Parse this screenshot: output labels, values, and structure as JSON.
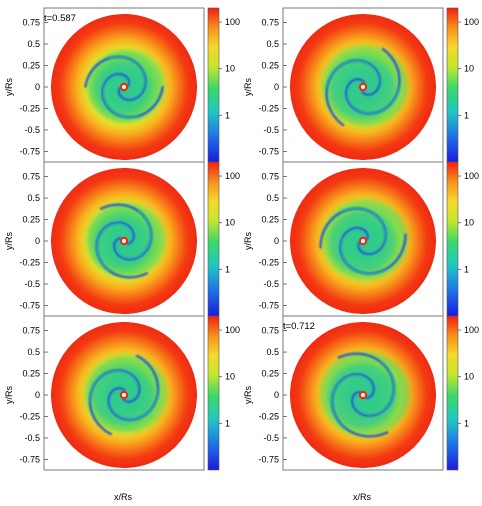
{
  "chart_data": [
    {
      "type": "heatmap",
      "row": 1,
      "col": 1,
      "annotation": "t=0.587",
      "ylabel": "y/Rs",
      "xlabel": "",
      "ylim": [
        -0.85,
        0.85
      ],
      "xlim": [
        -0.85,
        0.85
      ],
      "yticks": [
        "0.75",
        "0.5",
        "0.25",
        "0",
        "-0.25",
        "-0.5",
        "-0.75"
      ],
      "colorbar": {
        "scale": "log",
        "range": [
          0.1,
          200
        ],
        "ticks": [
          "100",
          "10",
          "1"
        ]
      },
      "spiral_arms": 2,
      "spiral_phase": 0.3,
      "green_radius": 0.45
    },
    {
      "type": "heatmap",
      "row": 1,
      "col": 2,
      "annotation": "",
      "ylabel": "y/Rs",
      "xlabel": "",
      "ylim": [
        -0.85,
        0.85
      ],
      "xlim": [
        -0.85,
        0.85
      ],
      "yticks": [
        "0.75",
        "0.5",
        "0.25",
        "0",
        "-0.25",
        "-0.5",
        "-0.75"
      ],
      "colorbar": {
        "scale": "log",
        "range": [
          0.1,
          200
        ],
        "ticks": [
          "100",
          "10",
          "1"
        ]
      },
      "spiral_arms": 2,
      "spiral_phase": 1.4,
      "green_radius": 0.5
    },
    {
      "type": "heatmap",
      "row": 2,
      "col": 1,
      "annotation": "",
      "ylabel": "y/Rs",
      "xlabel": "",
      "ylim": [
        -0.85,
        0.85
      ],
      "xlim": [
        -0.85,
        0.85
      ],
      "yticks": [
        "0.75",
        "0.5",
        "0.25",
        "0",
        "-0.25",
        "-0.5",
        "-0.75"
      ],
      "colorbar": {
        "scale": "log",
        "range": [
          0.1,
          200
        ],
        "ticks": [
          "100",
          "10",
          "1"
        ]
      },
      "spiral_arms": 2,
      "spiral_phase": 2.5,
      "green_radius": 0.46
    },
    {
      "type": "heatmap",
      "row": 2,
      "col": 2,
      "annotation": "",
      "ylabel": "y/Rs",
      "xlabel": "",
      "ylim": [
        -0.85,
        0.85
      ],
      "xlim": [
        -0.85,
        0.85
      ],
      "yticks": [
        "0.75",
        "0.5",
        "0.25",
        "0",
        "-0.25",
        "-0.5",
        "-0.75"
      ],
      "colorbar": {
        "scale": "log",
        "range": [
          0.1,
          200
        ],
        "ticks": [
          "100",
          "10",
          "1"
        ]
      },
      "spiral_arms": 2,
      "spiral_phase": 3.6,
      "green_radius": 0.5
    },
    {
      "type": "heatmap",
      "row": 3,
      "col": 1,
      "annotation": "",
      "ylabel": "y/Rs",
      "xlabel": "x/Rs",
      "ylim": [
        -0.85,
        0.85
      ],
      "xlim": [
        -0.85,
        0.85
      ],
      "yticks": [
        "0.75",
        "0.5",
        "0.25",
        "0",
        "-0.25",
        "-0.5",
        "-0.75"
      ],
      "colorbar": {
        "scale": "log",
        "range": [
          0.1,
          200
        ],
        "ticks": [
          "100",
          "10",
          "1"
        ]
      },
      "spiral_arms": 2,
      "spiral_phase": 4.7,
      "green_radius": 0.48
    },
    {
      "type": "heatmap",
      "row": 3,
      "col": 2,
      "annotation": "t=0.712",
      "ylabel": "y/Rs",
      "xlabel": "x/Rs",
      "ylim": [
        -0.85,
        0.85
      ],
      "xlim": [
        -0.85,
        0.85
      ],
      "yticks": [
        "0.75",
        "0.5",
        "0.25",
        "0",
        "-0.25",
        "-0.5",
        "-0.75"
      ],
      "colorbar": {
        "scale": "log",
        "range": [
          0.1,
          200
        ],
        "ticks": [
          "100",
          "10",
          "1"
        ]
      },
      "spiral_arms": 2,
      "spiral_phase": 5.6,
      "green_radius": 0.52
    }
  ],
  "colors": {
    "outer": "#f22a14",
    "orange": "#f98a1c",
    "yellow": "#f4de2a",
    "yellowgreen": "#b6e23a",
    "green": "#40d66a",
    "cyan": "#28c0a8",
    "blue": "#2558d6",
    "center_ring": "#e83010",
    "center_dot": "#ffffff"
  }
}
